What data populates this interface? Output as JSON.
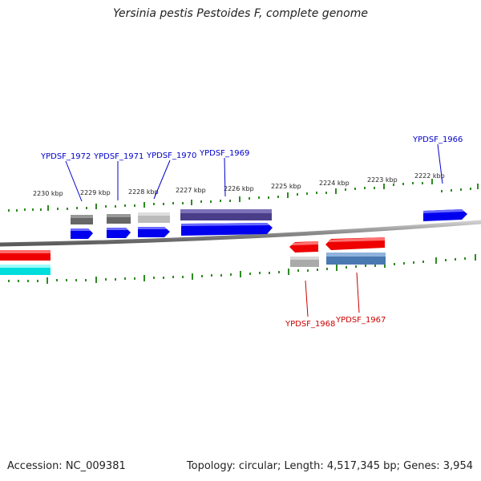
{
  "title": "Yersinia pestis Pestoides F, complete genome",
  "footer": {
    "accession": "Accession: NC_009381",
    "topology": "Topology: circular; Length: 4,517,345 bp; Genes: 3,954"
  },
  "ruler_labels": [
    "2230 kbp",
    "2229 kbp",
    "2228 kbp",
    "2227 kbp",
    "2226 kbp",
    "2225 kbp",
    "2224 kbp",
    "2223 kbp",
    "2222 kbp"
  ],
  "gene_labels": {
    "forward": [
      "YPDSF_1972",
      "YPDSF_1971",
      "YPDSF_1970",
      "YPDSF_1969",
      "YPDSF_1966"
    ],
    "reverse": [
      "YPDSF_1968",
      "YPDSF_1967"
    ]
  },
  "colors": {
    "forward_gene": "#0000ee",
    "reverse_gene": "#ee0000",
    "rna_gene": "#00dddd",
    "tick": "#2e8b22",
    "backbone": "#808080"
  }
}
